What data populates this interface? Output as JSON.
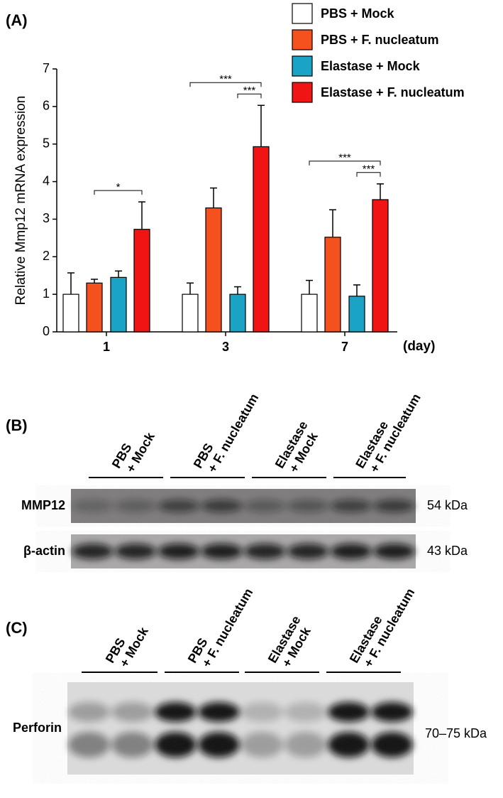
{
  "chart_data": {
    "type": "bar",
    "panel_label": "(A)",
    "ylabel": "Relative Mmp12 mRNA expression",
    "xlabel": "(day)",
    "categories": [
      "1",
      "3",
      "7"
    ],
    "series": [
      {
        "name": "PBS + Mock",
        "color": "#ffffff",
        "values": [
          1,
          1,
          1
        ],
        "errors": [
          0.57,
          0.3,
          0.37
        ]
      },
      {
        "name": "PBS + F. nucleatum",
        "color": "#f4511e",
        "values": [
          1.3,
          3.3,
          2.52
        ],
        "errors": [
          0.1,
          0.53,
          0.73
        ]
      },
      {
        "name": "Elastase + Mock",
        "color": "#1ba3c6",
        "values": [
          1.45,
          1.0,
          0.95
        ],
        "errors": [
          0.17,
          0.2,
          0.3
        ]
      },
      {
        "name": "Elastase + F. nucleatum",
        "color": "#f01414",
        "values": [
          2.73,
          4.93,
          3.52
        ],
        "errors": [
          0.73,
          1.1,
          0.42
        ]
      }
    ],
    "ylim": [
      0,
      7
    ],
    "yticks": [
      0,
      1,
      2,
      3,
      4,
      5,
      6,
      7
    ],
    "significance": [
      {
        "label": "*",
        "category": 0,
        "from": 1,
        "to": 3
      },
      {
        "label": "***",
        "category": 1,
        "from": 2,
        "to": 3
      },
      {
        "label": "***",
        "category": 1,
        "from": 0,
        "to": 3
      },
      {
        "label": "***",
        "category": 2,
        "from": 2,
        "to": 3
      },
      {
        "label": "***",
        "category": 2,
        "from": 0,
        "to": 3
      }
    ]
  },
  "blot_b": {
    "panel_label": "(B)",
    "lanes": [
      [
        "PBS",
        "+ Mock"
      ],
      [
        "PBS",
        "+ F. nucleatum"
      ],
      [
        "Elastase",
        "+ Mock"
      ],
      [
        "Elastase",
        "+ F. nucleatum"
      ]
    ],
    "rows": [
      {
        "label": "MMP12",
        "size": "54 kDa"
      },
      {
        "label": "β-actin",
        "size": "43 kDa"
      }
    ]
  },
  "blot_c": {
    "panel_label": "(C)",
    "lanes": [
      [
        "PBS",
        "+ Mock"
      ],
      [
        "PBS",
        "+ F. nucleatum"
      ],
      [
        "Elastase",
        "+ Mock"
      ],
      [
        "Elastase",
        "+ F. nucleatum"
      ]
    ],
    "rows": [
      {
        "label": "Perforin",
        "size": "70–75 kDa"
      }
    ]
  }
}
